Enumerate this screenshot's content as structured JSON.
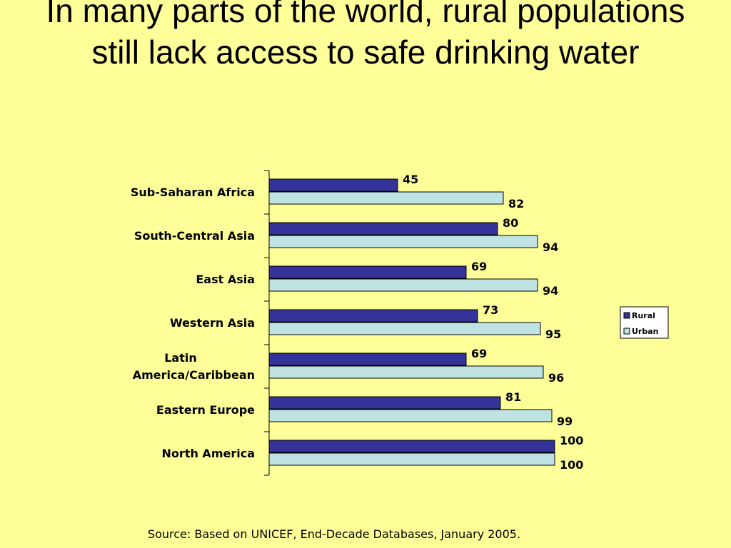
{
  "title": "In many parts of the world, rural populations still lack access to safe drinking water",
  "source": "Source: Based on UNICEF, End-Decade Databases, January 2005.",
  "colors": {
    "background": "#FFFF99",
    "rural": "#333399",
    "urban": "#BFE3E3"
  },
  "chart_data": {
    "type": "bar",
    "orientation": "horizontal",
    "categories": [
      [
        "Sub-Saharan Africa"
      ],
      [
        "South-Central Asia"
      ],
      [
        "East Asia"
      ],
      [
        "Western Asia"
      ],
      [
        "Latin",
        "America/Caribbean"
      ],
      [
        "Eastern Europe"
      ],
      [
        "North America"
      ]
    ],
    "series": [
      {
        "name": "Rural",
        "values": [
          45,
          80,
          69,
          73,
          69,
          81,
          100
        ]
      },
      {
        "name": "Urban",
        "values": [
          82,
          94,
          94,
          95,
          96,
          99,
          100
        ]
      }
    ],
    "xlim": [
      0,
      100
    ],
    "grid": false,
    "legend_position": "right"
  }
}
